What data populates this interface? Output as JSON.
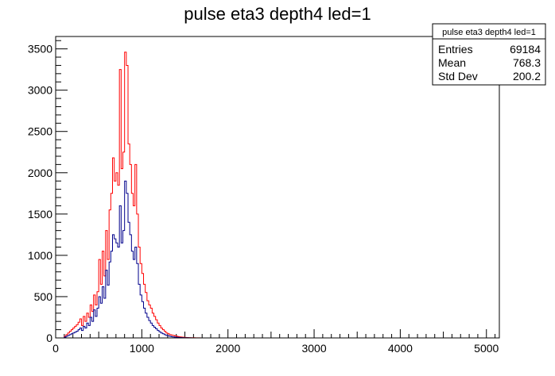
{
  "chart_data": {
    "type": "histogram",
    "title": "pulse eta3 depth4 led=1",
    "xlabel": "",
    "ylabel": "",
    "xlim": [
      0,
      5150
    ],
    "ylim": [
      0,
      3650
    ],
    "x_ticks": [
      0,
      1000,
      2000,
      3000,
      4000,
      5000
    ],
    "y_ticks": [
      0,
      500,
      1000,
      1500,
      2000,
      2500,
      3000,
      3500
    ],
    "x_tick_labels": [
      "0",
      "1000",
      "2000",
      "3000",
      "4000",
      "5000"
    ],
    "y_tick_labels": [
      "0",
      "500",
      "1000",
      "1500",
      "2000",
      "2500",
      "3000",
      "3500"
    ],
    "bin_width": 20,
    "series": [
      {
        "color": "#ff0000",
        "bins": [
          [
            100,
            20
          ],
          [
            120,
            40
          ],
          [
            140,
            60
          ],
          [
            160,
            80
          ],
          [
            180,
            100
          ],
          [
            200,
            120
          ],
          [
            220,
            140
          ],
          [
            240,
            160
          ],
          [
            260,
            190
          ],
          [
            280,
            230
          ],
          [
            300,
            150
          ],
          [
            320,
            260
          ],
          [
            340,
            200
          ],
          [
            360,
            300
          ],
          [
            380,
            250
          ],
          [
            400,
            400
          ],
          [
            420,
            320
          ],
          [
            440,
            520
          ],
          [
            460,
            400
          ],
          [
            480,
            560
          ],
          [
            500,
            950
          ],
          [
            520,
            650
          ],
          [
            540,
            1050
          ],
          [
            560,
            750
          ],
          [
            580,
            1300
          ],
          [
            600,
            950
          ],
          [
            620,
            1550
          ],
          [
            640,
            1750
          ],
          [
            660,
            2180
          ],
          [
            680,
            1900
          ],
          [
            700,
            2000
          ],
          [
            720,
            1850
          ],
          [
            740,
            3250
          ],
          [
            760,
            2050
          ],
          [
            780,
            2250
          ],
          [
            800,
            3460
          ],
          [
            820,
            3300
          ],
          [
            840,
            2350
          ],
          [
            860,
            2100
          ],
          [
            880,
            1750
          ],
          [
            900,
            1600
          ],
          [
            920,
            2100
          ],
          [
            940,
            1500
          ],
          [
            960,
            1100
          ],
          [
            980,
            900
          ],
          [
            1000,
            780
          ],
          [
            1020,
            650
          ],
          [
            1040,
            550
          ],
          [
            1060,
            450
          ],
          [
            1080,
            400
          ],
          [
            1100,
            360
          ],
          [
            1120,
            300
          ],
          [
            1140,
            260
          ],
          [
            1160,
            220
          ],
          [
            1180,
            180
          ],
          [
            1200,
            150
          ],
          [
            1220,
            120
          ],
          [
            1240,
            100
          ],
          [
            1260,
            80
          ],
          [
            1280,
            60
          ],
          [
            1300,
            50
          ],
          [
            1320,
            40
          ],
          [
            1340,
            35
          ],
          [
            1360,
            30
          ],
          [
            1380,
            25
          ],
          [
            1400,
            20
          ],
          [
            1420,
            15
          ],
          [
            1440,
            12
          ],
          [
            1460,
            10
          ],
          [
            1480,
            8
          ],
          [
            1500,
            6
          ],
          [
            1520,
            5
          ],
          [
            1540,
            4
          ],
          [
            1560,
            3
          ],
          [
            1580,
            2
          ],
          [
            1600,
            2
          ],
          [
            1620,
            1
          ],
          [
            1640,
            1
          ],
          [
            1660,
            1
          ]
        ]
      },
      {
        "color": "#00008b",
        "bins": [
          [
            100,
            10
          ],
          [
            120,
            20
          ],
          [
            140,
            30
          ],
          [
            160,
            40
          ],
          [
            180,
            50
          ],
          [
            200,
            60
          ],
          [
            220,
            70
          ],
          [
            240,
            80
          ],
          [
            260,
            100
          ],
          [
            280,
            120
          ],
          [
            300,
            90
          ],
          [
            320,
            140
          ],
          [
            340,
            120
          ],
          [
            360,
            180
          ],
          [
            380,
            150
          ],
          [
            400,
            250
          ],
          [
            420,
            200
          ],
          [
            440,
            340
          ],
          [
            460,
            260
          ],
          [
            480,
            360
          ],
          [
            500,
            500
          ],
          [
            520,
            420
          ],
          [
            540,
            620
          ],
          [
            560,
            480
          ],
          [
            580,
            820
          ],
          [
            600,
            640
          ],
          [
            620,
            920
          ],
          [
            640,
            1050
          ],
          [
            660,
            1250
          ],
          [
            680,
            1200
          ],
          [
            700,
            1150
          ],
          [
            720,
            1100
          ],
          [
            740,
            1600
          ],
          [
            760,
            1150
          ],
          [
            780,
            1300
          ],
          [
            800,
            1900
          ],
          [
            820,
            1750
          ],
          [
            840,
            1400
          ],
          [
            860,
            1250
          ],
          [
            880,
            1050
          ],
          [
            900,
            950
          ],
          [
            920,
            1100
          ],
          [
            940,
            900
          ],
          [
            960,
            650
          ],
          [
            980,
            520
          ],
          [
            1000,
            440
          ],
          [
            1020,
            360
          ],
          [
            1040,
            300
          ],
          [
            1060,
            250
          ],
          [
            1080,
            210
          ],
          [
            1100,
            180
          ],
          [
            1120,
            150
          ],
          [
            1140,
            130
          ],
          [
            1160,
            110
          ],
          [
            1180,
            90
          ],
          [
            1200,
            75
          ],
          [
            1220,
            60
          ],
          [
            1240,
            50
          ],
          [
            1260,
            40
          ],
          [
            1280,
            30
          ],
          [
            1300,
            25
          ],
          [
            1320,
            20
          ],
          [
            1340,
            15
          ],
          [
            1360,
            12
          ],
          [
            1380,
            10
          ],
          [
            1400,
            8
          ],
          [
            1420,
            6
          ],
          [
            1440,
            5
          ],
          [
            1460,
            4
          ],
          [
            1480,
            3
          ],
          [
            1500,
            2
          ],
          [
            1520,
            2
          ],
          [
            1540,
            1
          ],
          [
            1560,
            1
          ]
        ]
      }
    ],
    "stats_box": {
      "title": "pulse eta3 depth4 led=1",
      "rows": [
        {
          "label": "Entries",
          "value": "69184"
        },
        {
          "label": "Mean",
          "value": "768.3"
        },
        {
          "label": "Std Dev",
          "value": "200.2"
        }
      ]
    }
  }
}
